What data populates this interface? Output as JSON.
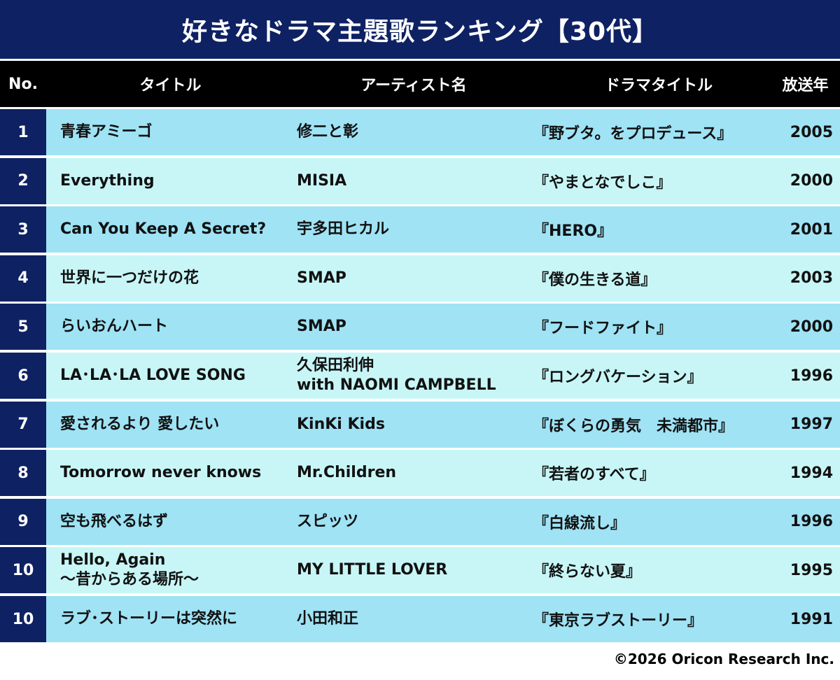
{
  "title": "好きなドラマ主題歌ランキング【30代】",
  "headers": {
    "no": "No.",
    "title": "タイトル",
    "artist": "アーティスト名",
    "drama": "ドラマタイトル",
    "year": "放送年"
  },
  "rows": [
    {
      "rank": "1",
      "title": [
        "青春アミーゴ"
      ],
      "artist": [
        "修二と彰"
      ],
      "drama": "『野ブタ。をプロデュース』",
      "year": "2005"
    },
    {
      "rank": "2",
      "title": [
        "Everything"
      ],
      "artist": [
        "MISIA"
      ],
      "drama": "『やまとなでしこ』",
      "year": "2000"
    },
    {
      "rank": "3",
      "title": [
        "Can You Keep A Secret?"
      ],
      "artist": [
        "宇多田ヒカル"
      ],
      "drama": "『HERO』",
      "year": "2001"
    },
    {
      "rank": "4",
      "title": [
        "世界に一つだけの花"
      ],
      "artist": [
        "SMAP"
      ],
      "drama": "『僕の生きる道』",
      "year": "2003"
    },
    {
      "rank": "5",
      "title": [
        "らいおんハート"
      ],
      "artist": [
        "SMAP"
      ],
      "drama": "『フードファイト』",
      "year": "2000"
    },
    {
      "rank": "6",
      "title": [
        "LA･LA･LA LOVE SONG"
      ],
      "artist": [
        "久保田利伸",
        "with NAOMI CAMPBELL"
      ],
      "drama": "『ロングバケーション』",
      "year": "1996"
    },
    {
      "rank": "7",
      "title": [
        "愛されるより 愛したい"
      ],
      "artist": [
        "KinKi Kids"
      ],
      "drama": "『ぼくらの勇気　未満都市』",
      "year": "1997"
    },
    {
      "rank": "8",
      "title": [
        "Tomorrow never knows"
      ],
      "artist": [
        "Mr.Children"
      ],
      "drama": "『若者のすべて』",
      "year": "1994"
    },
    {
      "rank": "9",
      "title": [
        "空も飛べるはず"
      ],
      "artist": [
        "スピッツ"
      ],
      "drama": "『白線流し』",
      "year": "1996"
    },
    {
      "rank": "10",
      "title": [
        "Hello, Again",
        "〜昔からある場所〜"
      ],
      "artist": [
        "MY LITTLE LOVER"
      ],
      "drama": "『終らない夏』",
      "year": "1995"
    },
    {
      "rank": "10",
      "title": [
        "ラブ･ストーリーは突然に"
      ],
      "artist": [
        "小田和正"
      ],
      "drama": "『東京ラブストーリー』",
      "year": "1991"
    }
  ],
  "copyright": "©2026 Oricon Research Inc.",
  "colors": {
    "navy": "#0e2163",
    "header": "#000000",
    "row_odd": "#9fe3f5",
    "row_even": "#c8f6f7"
  }
}
